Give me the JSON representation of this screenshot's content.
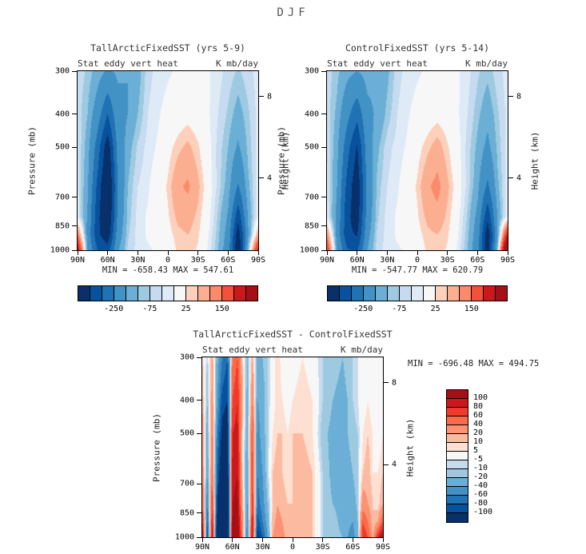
{
  "title": "DJF",
  "colorbars": {
    "top": {
      "labels": [
        "-250",
        "-75",
        "25",
        "150"
      ],
      "boundary_indices": [
        3,
        6,
        9,
        12
      ]
    },
    "bottom": {
      "labels": [
        "100",
        "80",
        "60",
        "40",
        "20",
        "10",
        "5",
        "-5",
        "-10",
        "-20",
        "-40",
        "-60",
        "-80",
        "-100"
      ]
    }
  },
  "chart_data": [
    {
      "type": "heatmap",
      "title": "TallArcticFixedSST (yrs 5-9)",
      "subtitle_left": "Stat eddy vert heat",
      "subtitle_right": "K mb/day",
      "minmax": "MIN = -658.43  MAX = 547.61",
      "ylabel": "Pressure (mb)",
      "ylabel_right": "Height (km)",
      "xlabel_ticks": [
        "90N",
        "60N",
        "30N",
        "0",
        "30S",
        "60S",
        "90S"
      ],
      "y_ticks": [
        300,
        400,
        500,
        700,
        850,
        1000
      ],
      "height_ticks": [
        {
          "label": "8",
          "p": 356
        },
        {
          "label": "4",
          "p": 616
        }
      ],
      "p_range": [
        300,
        1000
      ],
      "lat_range": [
        90,
        -90
      ],
      "levels": [
        -450,
        -350,
        -250,
        -150,
        -100,
        -75,
        -50,
        -25,
        25,
        50,
        100,
        150,
        250,
        350
      ],
      "palette": [
        "#08306b",
        "#08519c",
        "#2171b5",
        "#4292c6",
        "#6baed6",
        "#9ecae1",
        "#c6dbef",
        "#deebf7",
        "#f7f7f7",
        "#fdd0bc",
        "#fcae91",
        "#fb8a6a",
        "#f4503a",
        "#cb181d",
        "#a50f15"
      ],
      "lats": [
        90,
        80,
        70,
        60,
        50,
        40,
        30,
        20,
        10,
        0,
        -10,
        -20,
        -30,
        -40,
        -50,
        -60,
        -70,
        -80,
        -90
      ],
      "pressures": [
        300,
        400,
        500,
        650,
        800,
        900,
        1000
      ],
      "values": [
        [
          -60,
          -80,
          -120,
          -160,
          -140,
          -150,
          -120,
          -60,
          -40,
          -30,
          -20,
          -10,
          -10,
          -20,
          -40,
          -60,
          -80,
          -60,
          -40
        ],
        [
          -60,
          -100,
          -200,
          -350,
          -180,
          -150,
          -100,
          -50,
          -30,
          -10,
          0,
          10,
          0,
          -20,
          -50,
          -80,
          -120,
          -80,
          -40
        ],
        [
          -50,
          -120,
          -300,
          -520,
          -220,
          -120,
          -70,
          -40,
          -20,
          10,
          40,
          60,
          30,
          -10,
          -60,
          -100,
          -160,
          -90,
          -40
        ],
        [
          -40,
          -140,
          -380,
          -600,
          -250,
          -100,
          -50,
          -30,
          0,
          30,
          90,
          110,
          60,
          0,
          -60,
          -120,
          -260,
          -110,
          -30
        ],
        [
          -30,
          -160,
          -420,
          -580,
          -230,
          -90,
          -40,
          -20,
          0,
          20,
          60,
          70,
          40,
          -10,
          -80,
          -160,
          -420,
          -140,
          -20
        ],
        [
          150,
          -180,
          -430,
          -520,
          -200,
          -80,
          -40,
          -20,
          -10,
          10,
          40,
          50,
          30,
          -20,
          -90,
          -180,
          -520,
          -160,
          80
        ],
        [
          350,
          -150,
          -350,
          -400,
          -160,
          -70,
          -40,
          -30,
          -20,
          0,
          30,
          40,
          20,
          -30,
          -100,
          -200,
          -560,
          -100,
          300
        ]
      ]
    },
    {
      "type": "heatmap",
      "title": "ControlFixedSST (yrs 5-14)",
      "subtitle_left": "Stat eddy vert heat",
      "subtitle_right": "K mb/day",
      "minmax": "MIN = -547.77  MAX = 620.79",
      "ylabel": "Pressure (mb)",
      "ylabel_right": "Height (km)",
      "xlabel_ticks": [
        "90N",
        "60N",
        "30N",
        "0",
        "30S",
        "60S",
        "90S"
      ],
      "y_ticks": [
        300,
        400,
        500,
        700,
        850,
        1000
      ],
      "height_ticks": [
        {
          "label": "8",
          "p": 356
        },
        {
          "label": "4",
          "p": 616
        }
      ],
      "p_range": [
        300,
        1000
      ],
      "lat_range": [
        90,
        -90
      ],
      "levels": [
        -450,
        -350,
        -250,
        -150,
        -100,
        -75,
        -50,
        -25,
        25,
        50,
        100,
        150,
        250,
        350
      ],
      "palette": [
        "#08306b",
        "#08519c",
        "#2171b5",
        "#4292c6",
        "#6baed6",
        "#9ecae1",
        "#c6dbef",
        "#deebf7",
        "#f7f7f7",
        "#fdd0bc",
        "#fcae91",
        "#fb8a6a",
        "#f4503a",
        "#cb181d",
        "#a50f15"
      ],
      "lats": [
        90,
        80,
        70,
        60,
        50,
        40,
        30,
        20,
        10,
        0,
        -10,
        -20,
        -30,
        -40,
        -50,
        -60,
        -70,
        -80,
        -90
      ],
      "pressures": [
        300,
        400,
        500,
        650,
        800,
        900,
        1000
      ],
      "values": [
        [
          -60,
          -90,
          -130,
          -150,
          -130,
          -140,
          -110,
          -60,
          -40,
          -30,
          -20,
          -10,
          -10,
          -20,
          -40,
          -70,
          -90,
          -60,
          -40
        ],
        [
          -60,
          -110,
          -220,
          -320,
          -170,
          -140,
          -90,
          -50,
          -30,
          -10,
          0,
          10,
          0,
          -20,
          -50,
          -90,
          -130,
          -80,
          -40
        ],
        [
          -50,
          -130,
          -310,
          -460,
          -200,
          -110,
          -60,
          -40,
          -20,
          10,
          40,
          70,
          30,
          -10,
          -60,
          -110,
          -170,
          -90,
          -40
        ],
        [
          -40,
          -150,
          -380,
          -530,
          -230,
          -90,
          -50,
          -30,
          0,
          30,
          90,
          120,
          60,
          0,
          -60,
          -130,
          -270,
          -110,
          -30
        ],
        [
          -30,
          -170,
          -420,
          -510,
          -210,
          -80,
          -40,
          -20,
          0,
          20,
          60,
          80,
          40,
          -10,
          -80,
          -170,
          -430,
          -140,
          -20
        ],
        [
          120,
          -180,
          -420,
          -460,
          -180,
          -70,
          -40,
          -20,
          -10,
          10,
          40,
          50,
          30,
          -20,
          -90,
          -190,
          -530,
          -150,
          300
        ],
        [
          250,
          -150,
          -340,
          -360,
          -150,
          -60,
          -40,
          -30,
          -20,
          0,
          30,
          40,
          20,
          -30,
          -100,
          -210,
          -540,
          -90,
          620
        ]
      ]
    },
    {
      "type": "heatmap",
      "title": "TallArcticFixedSST - ControlFixedSST",
      "subtitle_left": "Stat eddy vert heat",
      "subtitle_right": "K mb/day",
      "minmax": "MIN = -696.48  MAX = 494.75",
      "ylabel": "Pressure (mb)",
      "ylabel_right": "Height (km)",
      "xlabel_ticks": [
        "90N",
        "60N",
        "30N",
        "0",
        "30S",
        "60S",
        "90S"
      ],
      "y_ticks": [
        300,
        400,
        500,
        700,
        850,
        1000
      ],
      "height_ticks": [
        {
          "label": "8",
          "p": 356
        },
        {
          "label": "4",
          "p": 616
        }
      ],
      "p_range": [
        300,
        1000
      ],
      "lat_range": [
        90,
        -90
      ],
      "levels": [
        -100,
        -80,
        -60,
        -40,
        -20,
        -10,
        -5,
        5,
        10,
        20,
        40,
        60,
        80,
        100
      ],
      "palette": [
        "#08306b",
        "#08519c",
        "#2171b5",
        "#4292c6",
        "#6baed6",
        "#9ecae1",
        "#c6dbef",
        "#f7f7f7",
        "#fee0d2",
        "#fcbba1",
        "#fc9272",
        "#fb6a4a",
        "#ef3b2c",
        "#cb181d",
        "#a50f15"
      ],
      "lats": [
        90,
        85,
        80,
        75,
        70,
        65,
        60,
        55,
        50,
        45,
        40,
        35,
        30,
        25,
        20,
        15,
        10,
        5,
        0,
        -10,
        -20,
        -30,
        -40,
        -50,
        -55,
        -60,
        -65,
        -70,
        -75,
        -80,
        -85,
        -90
      ],
      "pressures": [
        300,
        400,
        500,
        650,
        800,
        900,
        1000
      ],
      "values": [
        [
          10,
          -10,
          20,
          -30,
          -60,
          -80,
          40,
          60,
          10,
          -20,
          20,
          -30,
          -20,
          -10,
          0,
          10,
          0,
          -5,
          0,
          5,
          0,
          -10,
          -15,
          -20,
          -15,
          -10,
          -5,
          0,
          5,
          0,
          0,
          0
        ],
        [
          20,
          -20,
          30,
          -40,
          -90,
          -100,
          60,
          80,
          20,
          -30,
          40,
          -40,
          -30,
          -10,
          0,
          10,
          5,
          0,
          5,
          10,
          5,
          -10,
          -20,
          -25,
          -20,
          -10,
          -5,
          0,
          5,
          0,
          0,
          5
        ],
        [
          30,
          -30,
          40,
          -60,
          -110,
          -120,
          80,
          90,
          10,
          -30,
          60,
          -50,
          -30,
          -10,
          5,
          10,
          10,
          5,
          10,
          10,
          5,
          -15,
          -25,
          -30,
          -20,
          -15,
          -10,
          5,
          10,
          5,
          0,
          5
        ],
        [
          40,
          -40,
          50,
          -80,
          -130,
          -140,
          90,
          100,
          10,
          -40,
          70,
          -60,
          -40,
          -10,
          10,
          15,
          10,
          5,
          10,
          15,
          10,
          -10,
          -25,
          -30,
          -25,
          -20,
          -10,
          10,
          15,
          5,
          5,
          10
        ],
        [
          60,
          -60,
          70,
          -100,
          -160,
          -150,
          100,
          110,
          20,
          -40,
          80,
          -70,
          -50,
          -20,
          10,
          20,
          15,
          10,
          10,
          15,
          10,
          -10,
          -20,
          -25,
          -30,
          -30,
          -15,
          30,
          20,
          10,
          5,
          20
        ],
        [
          90,
          -80,
          90,
          -120,
          -250,
          -160,
          110,
          120,
          30,
          -50,
          90,
          -90,
          -60,
          -30,
          15,
          25,
          20,
          10,
          15,
          15,
          10,
          -10,
          -15,
          -25,
          -35,
          -40,
          -20,
          60,
          40,
          10,
          20,
          60
        ],
        [
          120,
          -100,
          110,
          -150,
          -400,
          -180,
          120,
          130,
          40,
          -60,
          100,
          -110,
          -80,
          -40,
          20,
          30,
          25,
          15,
          15,
          15,
          10,
          -10,
          -15,
          -20,
          -40,
          -50,
          -25,
          80,
          60,
          15,
          80,
          110
        ]
      ]
    }
  ]
}
